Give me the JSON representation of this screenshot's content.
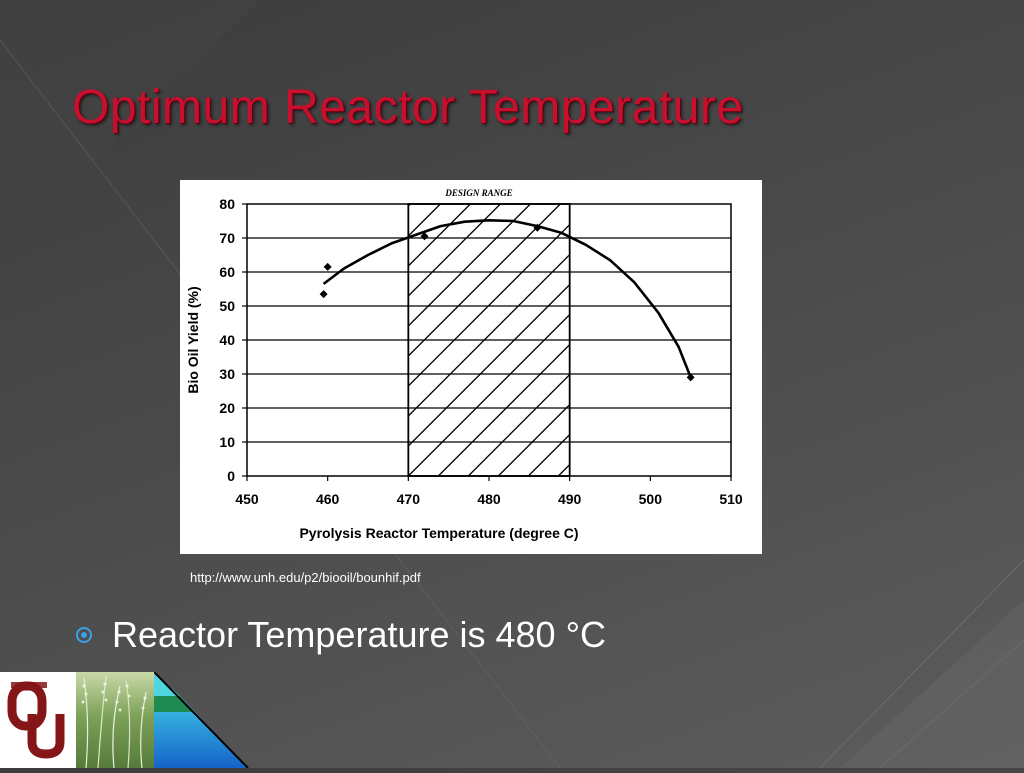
{
  "slide": {
    "title": "Optimum Reactor Temperature",
    "source_url": "http://www.unh.edu/p2/biooil/bounhif.pdf",
    "bullet_text": "Reactor Temperature is 480 °C"
  },
  "colors": {
    "title": "#c8102e",
    "bullet": "#3aa0e8",
    "logo_crimson": "#841617"
  },
  "icons": {
    "bullet": "circle-bullet-icon",
    "logo": "ou-logo-icon"
  },
  "chart_data": {
    "type": "scatter",
    "title": "",
    "xlabel": "Pyrolysis Reactor Temperature (degree C)",
    "ylabel": "Bio Oil Yield (%)",
    "xlim": [
      450,
      510
    ],
    "ylim": [
      0,
      80
    ],
    "xticks": [
      450,
      460,
      470,
      480,
      490,
      500,
      510
    ],
    "yticks": [
      0,
      10,
      20,
      30,
      40,
      50,
      60,
      70,
      80
    ],
    "grid": true,
    "points": [
      {
        "x": 459.5,
        "y": 53.5
      },
      {
        "x": 460,
        "y": 61.5
      },
      {
        "x": 472,
        "y": 70.5
      },
      {
        "x": 486,
        "y": 73
      },
      {
        "x": 505,
        "y": 29
      }
    ],
    "trend_curve": [
      {
        "x": 459.5,
        "y": 56.5
      },
      {
        "x": 462,
        "y": 61
      },
      {
        "x": 465,
        "y": 65
      },
      {
        "x": 468,
        "y": 68.5
      },
      {
        "x": 471,
        "y": 71
      },
      {
        "x": 474,
        "y": 73.5
      },
      {
        "x": 477,
        "y": 74.8
      },
      {
        "x": 480,
        "y": 75.2
      },
      {
        "x": 483,
        "y": 75
      },
      {
        "x": 486,
        "y": 73.5
      },
      {
        "x": 489,
        "y": 71.5
      },
      {
        "x": 492,
        "y": 68
      },
      {
        "x": 495,
        "y": 63.5
      },
      {
        "x": 498,
        "y": 57
      },
      {
        "x": 501,
        "y": 48
      },
      {
        "x": 503.5,
        "y": 38
      },
      {
        "x": 505,
        "y": 29
      }
    ],
    "design_range": {
      "label": "DESIGN RANGE",
      "x_start": 470,
      "x_end": 490
    }
  }
}
